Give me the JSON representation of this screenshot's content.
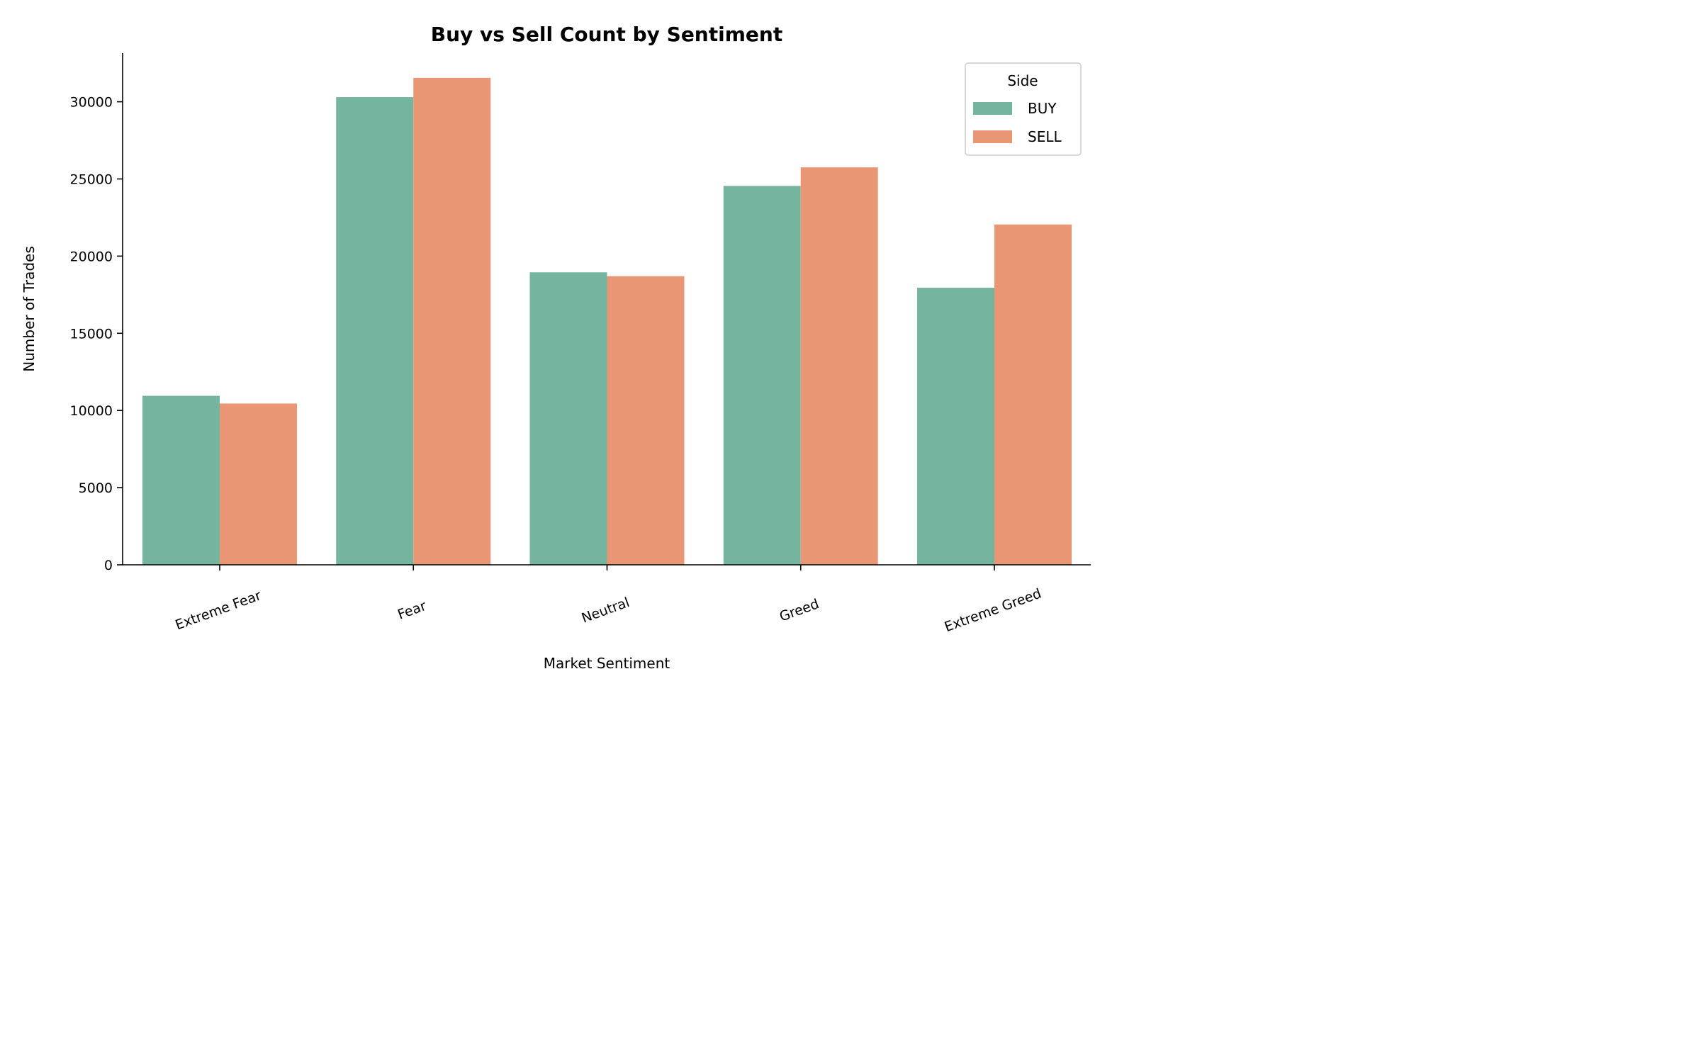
{
  "chart_data": {
    "type": "bar",
    "title": "Buy vs Sell Count by Sentiment",
    "xlabel": "Market Sentiment",
    "ylabel": "Number of Trades",
    "categories": [
      "Extreme Fear",
      "Fear",
      "Neutral",
      "Greed",
      "Extreme Greed"
    ],
    "series": [
      {
        "name": "BUY",
        "color": "#75b5a0",
        "values": [
          10950,
          30300,
          18950,
          24550,
          17950
        ]
      },
      {
        "name": "SELL",
        "color": "#e89674",
        "values": [
          10450,
          31550,
          18700,
          25750,
          22050
        ]
      }
    ],
    "yticks": [
      0,
      5000,
      10000,
      15000,
      20000,
      25000,
      30000
    ],
    "ylim": [
      0,
      33150
    ],
    "grid": false,
    "legend": {
      "title": "Side",
      "position": "top-right"
    }
  }
}
